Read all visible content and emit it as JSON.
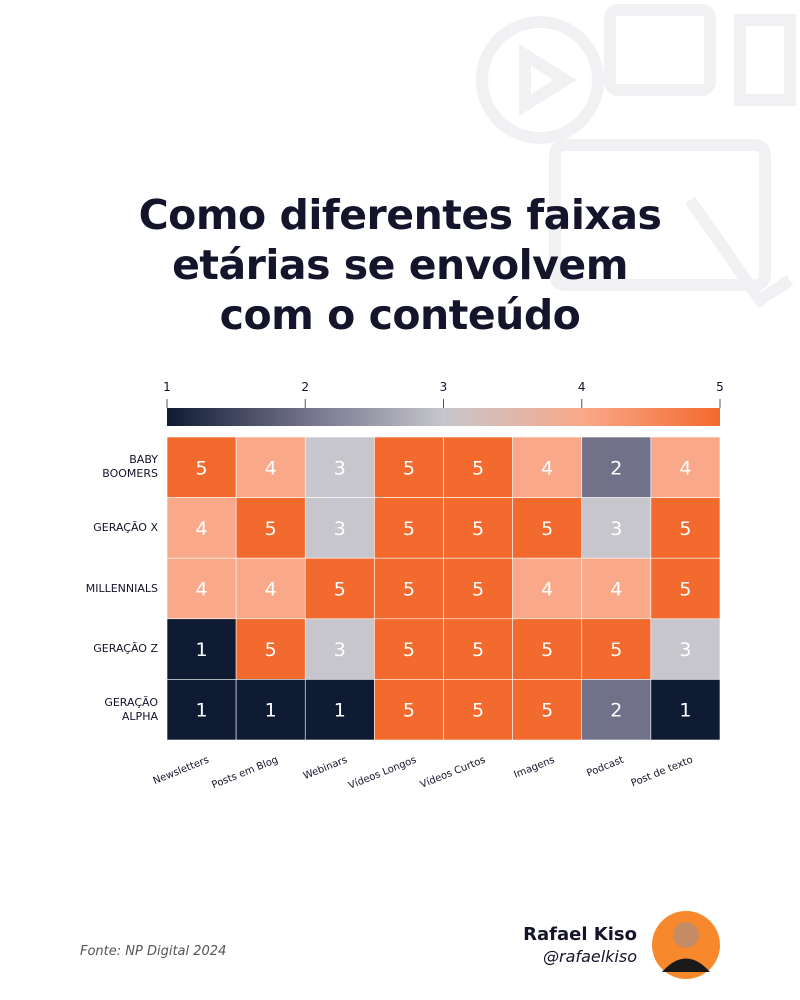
{
  "chart_data": {
    "type": "heatmap",
    "title": "Como diferentes faixas\netárias se envolvem\ncom o conteúdo",
    "x_categories": [
      "Newsletters",
      "Posts em Blog",
      "Webinars",
      "Vídeos Longos",
      "Vídeos Curtos",
      "Imagens",
      "Podcast",
      "Post de texto"
    ],
    "y_categories": [
      "BABY\nBOOMERS",
      "GERAÇÃO X",
      "MILLENNIALS",
      "GERAÇÃO Z",
      "GERAÇÃO\nALPHA"
    ],
    "values": [
      [
        5,
        4,
        3,
        5,
        5,
        4,
        2,
        4
      ],
      [
        4,
        5,
        3,
        5,
        5,
        5,
        3,
        5
      ],
      [
        4,
        4,
        5,
        5,
        5,
        4,
        4,
        5
      ],
      [
        1,
        5,
        3,
        5,
        5,
        5,
        5,
        3
      ],
      [
        1,
        1,
        1,
        5,
        5,
        5,
        2,
        1
      ]
    ],
    "clim": [
      1,
      5
    ],
    "cticks": [
      1,
      2,
      3,
      4,
      5
    ],
    "colorscale": [
      "#0f1b33",
      "#72718a",
      "#c6c6cc",
      "#f9a98a",
      "#f26a2e"
    ]
  },
  "footer": {
    "source": "Fonte: NP Digital 2024",
    "author": "Rafael Kiso",
    "handle": "@rafaelkiso"
  }
}
